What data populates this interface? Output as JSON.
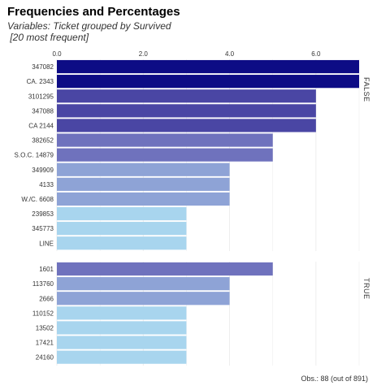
{
  "header": {
    "title": "Frequencies and Percentages",
    "subtitle_line1": "Variables: Ticket grouped by Survived",
    "subtitle_line2": " [20 most frequent]"
  },
  "footnote": "Obs.: 88 (out of 891)",
  "colors": {
    "level_7": "#0d0c85",
    "level_6": "#4a46a4",
    "level_5": "#6f72bd",
    "level_4": "#8ea3d6",
    "level_3": "#a8d5ee",
    "grid": "#ebebeb",
    "text": "#333333"
  },
  "chart_data": {
    "type": "bar",
    "orientation": "horizontal",
    "faceted_by": "Survived",
    "x_ticks": [
      "0.0",
      "2.0",
      "4.0",
      "6.0"
    ],
    "xlim": [
      0,
      7
    ],
    "grid": true,
    "panels": [
      {
        "label": "FALSE",
        "categories": [
          "347082",
          "CA. 2343",
          "3101295",
          "347088",
          "CA 2144",
          "382652",
          "S.O.C. 14879",
          "349909",
          "4133",
          "W./C. 6608",
          "239853",
          "345773",
          "LINE"
        ],
        "values": [
          7,
          7,
          6,
          6,
          6,
          5,
          5,
          4,
          4,
          4,
          3,
          3,
          3
        ]
      },
      {
        "label": "TRUE",
        "categories": [
          "1601",
          "113760",
          "2666",
          "110152",
          "13502",
          "17421",
          "24160"
        ],
        "values": [
          5,
          4,
          4,
          3,
          3,
          3,
          3
        ]
      }
    ]
  }
}
